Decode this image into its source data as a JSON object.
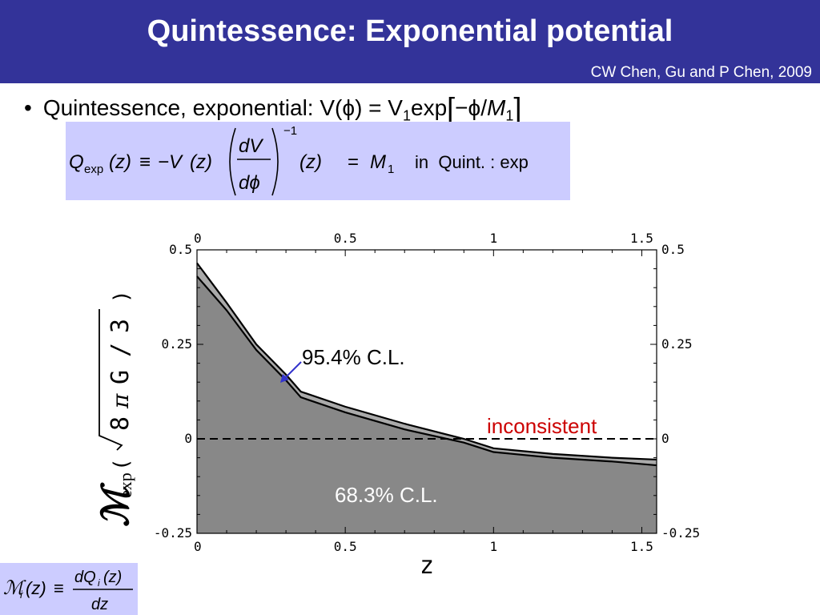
{
  "slide": {
    "title": "Quintessence: Exponential potential",
    "credit": "CW Chen, Gu and P Chen, 2009",
    "bullet": {
      "lead": "Quintessence, exponential:  V(",
      "phi": "ϕ",
      "mid1": ") = V",
      "sub1": "1",
      "mid2": "exp",
      "open": "[",
      "minus_phi": "−ϕ/",
      "M": "M",
      "sub2": "1",
      "close": "]"
    },
    "equation": {
      "Q": "Q",
      "Q_sub": "exp",
      "lhs_arg": "(z)",
      "equiv": "≡",
      "minus_V": "−V",
      "V_arg": "(z)",
      "frac_num": "dV",
      "frac_den": "dϕ",
      "exponent": "−1",
      "z_arg": "(z)",
      "equals": "=",
      "M": "M",
      "M_sub": "1",
      "note": "in  Quint. : exp"
    },
    "definition": {
      "M": "ℳ",
      "M_sub": "i",
      "arg": "(z)",
      "equiv": "≡",
      "num": "dQ",
      "num_sub": "i",
      "num_arg": "(z)",
      "den": "dz"
    }
  },
  "chart_data": {
    "type": "area",
    "xlabel": "z",
    "ylabel_symbol": "ℳ",
    "ylabel_sub": "exp",
    "ylabel_rest": "( √(8 π G / 3) )",
    "ylabel_parts": {
      "open": "(",
      "eight": "8",
      "pi": "π",
      "G": "G",
      "slash": "/",
      "three": "3",
      "close": ")"
    },
    "xlim": [
      0,
      1.55
    ],
    "ylim": [
      -0.25,
      0.5
    ],
    "x_ticks": [
      "0",
      "0.5",
      "1",
      "1.5"
    ],
    "x_tick_values": [
      0,
      0.5,
      1,
      1.5
    ],
    "y_ticks": [
      "-0.25",
      "0",
      "0.25",
      "0.5"
    ],
    "y_tick_values": [
      -0.25,
      0,
      0.25,
      0.5
    ],
    "grid": false,
    "reference_line": {
      "y": 0,
      "style": "dashed"
    },
    "series": [
      {
        "name": "95.4% C.L.",
        "color": "#aaaaaa",
        "x": [
          0,
          0.1,
          0.2,
          0.3,
          0.35,
          0.5,
          0.7,
          0.9,
          1.0,
          1.2,
          1.4,
          1.55
        ],
        "y": [
          0.465,
          0.36,
          0.25,
          0.17,
          0.125,
          0.085,
          0.04,
          0.0,
          -0.025,
          -0.04,
          -0.05,
          -0.055
        ]
      },
      {
        "name": "68.3% C.L.",
        "color": "#888888",
        "x": [
          0,
          0.1,
          0.2,
          0.3,
          0.35,
          0.5,
          0.7,
          0.9,
          1.0,
          1.2,
          1.4,
          1.55
        ],
        "y": [
          0.43,
          0.34,
          0.235,
          0.155,
          0.11,
          0.07,
          0.025,
          -0.01,
          -0.035,
          -0.05,
          -0.06,
          -0.07
        ]
      }
    ],
    "annotations": [
      {
        "text": "95.4% C.L.",
        "color": "#000000"
      },
      {
        "text": "inconsistent",
        "color": "#cc0000"
      },
      {
        "text": "68.3% C.L.",
        "color": "#ffffff"
      }
    ],
    "colors": {
      "outer_band": "#aaaaaa",
      "inner_band": "#888888",
      "arrow": "#3333cc",
      "title_bar": "#333399",
      "eq_box": "#ccccff"
    }
  }
}
